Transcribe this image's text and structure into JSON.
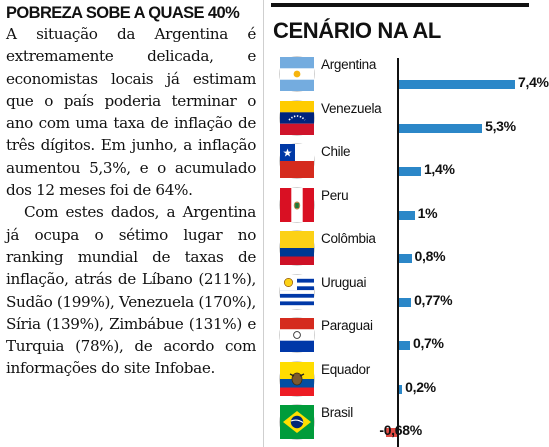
{
  "article": {
    "kicker": "POBREZA SOBE A QUASE 40%",
    "paragraph1": "A situação da Argentina é extremamente delicada, e economistas locais já estimam que o país poderia terminar o ano com uma taxa de inflação de três dígitos. Em junho, a inflação aumentou 5,3%, e o acumulado dos 12 meses foi de 64%.",
    "paragraph2": "Com estes dados, a Argentina já ocupa o sétimo lugar no ranking mundial de taxas de inflação, atrás de Líbano (211%), Sudão (199%), Venezuela (170%), Síria (139%), Zimbábue (131%) e Turquia (78%), de acordo com informações do site Infobae."
  },
  "panel": {
    "title": "CENÁRIO NA AL"
  },
  "colors": {
    "positive_bar": "#2b87c8",
    "negative_bar": "#e14b43"
  },
  "chart_data": {
    "type": "bar",
    "orientation": "horizontal",
    "title": "CENÁRIO NA AL",
    "unit": "%",
    "xlim": [
      -0.7,
      7.4
    ],
    "grid": false,
    "categories": [
      "Argentina",
      "Venezuela",
      "Chile",
      "Peru",
      "Colômbia",
      "Uruguai",
      "Paraguai",
      "Equador",
      "Brasil"
    ],
    "values": [
      7.4,
      5.3,
      1.4,
      1.0,
      0.8,
      0.77,
      0.7,
      0.2,
      -0.68
    ],
    "value_labels": [
      "7,4%",
      "5,3%",
      "1,4%",
      "1%",
      "0,8%",
      "0,77%",
      "0,7%",
      "0,2%",
      "-0,68%"
    ],
    "flag_icons": [
      "flag-argentina-icon",
      "flag-venezuela-icon",
      "flag-chile-icon",
      "flag-peru-icon",
      "flag-colombia-icon",
      "flag-uruguay-icon",
      "flag-paraguay-icon",
      "flag-ecuador-icon",
      "flag-brazil-icon"
    ]
  }
}
